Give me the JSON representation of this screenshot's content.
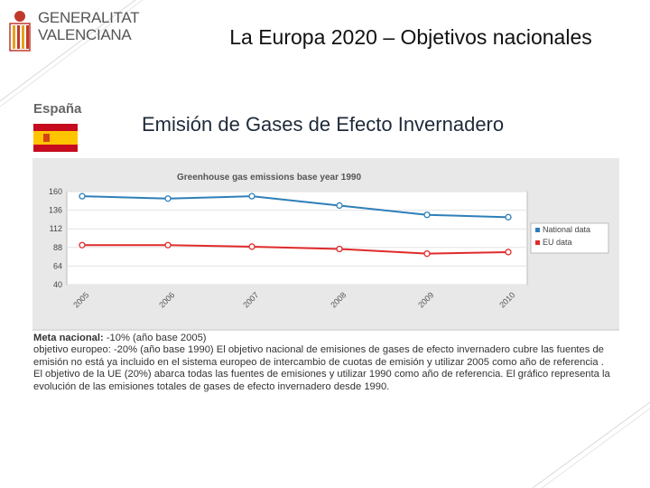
{
  "logo": {
    "line1": "GENERALITAT",
    "line2": "VALENCIANA"
  },
  "slide_title": "La Europa 2020 – Objetivos nacionales",
  "country": "España",
  "chart_heading": "Emisión de Gases de Efecto Invernadero",
  "colors": {
    "national": "#2e7fb8",
    "eu": "#e02a2a",
    "frame": "#e8e8e8"
  },
  "chart_data": {
    "type": "line",
    "title": "Greenhouse gas emissions base year 1990",
    "categories": [
      "2005",
      "2006",
      "2007",
      "2008",
      "2009",
      "2010"
    ],
    "series": [
      {
        "name": "National data",
        "values": [
          154,
          151,
          154,
          142,
          130,
          127
        ]
      },
      {
        "name": "EU data",
        "values": [
          91,
          91,
          89,
          86,
          80,
          82
        ]
      }
    ],
    "yticks": [
      160,
      136,
      112,
      88,
      64,
      40
    ],
    "ylim": [
      40,
      160
    ],
    "legend": "right",
    "grid": true
  },
  "text": {
    "meta_label": "Meta nacional:",
    "meta_value": " -10% (año base 2005)",
    "body": "objetivo europeo: -20% (año base 1990) El objetivo nacional de emisiones de gases de efecto invernadero cubre las fuentes de emisión no está ya incluido en el sistema europeo de intercambio de cuotas de emisión y utilizar 2005 como año de referencia . El objetivo de la UE (20%) abarca todas las fuentes de emisiones y utilizar 1990 como año de referencia. El gráfico representa la evolución de las emisiones totales de gases de efecto invernadero desde 1990."
  }
}
